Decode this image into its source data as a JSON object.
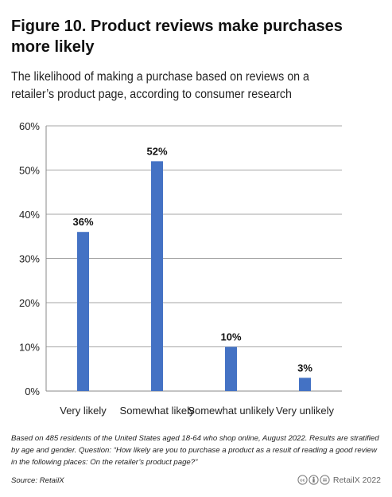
{
  "title": "Figure 10. Product reviews make purchases more likely",
  "subtitle": "The likelihood of making a purchase based on reviews on a retailer’s product page, according to consumer research",
  "note": "Based on 485 residents of the United States aged 18-64 who shop online, August 2022. Results are stratified by age and gender. Question: “How likely are you to purchase a product as a result of reading a good review in the following places: On the retailer’s product page?”",
  "source": "Source: RetailX",
  "copyright": "RetailX 2022",
  "icons": [
    "cc-icon",
    "by-icon",
    "equals-icon"
  ],
  "bar_color": "#4472c4",
  "chart_data": {
    "type": "bar",
    "categories": [
      "Very likely",
      "Somewhat likely",
      "Somewhat unlikely",
      "Very unlikely"
    ],
    "values": [
      36,
      52,
      10,
      3
    ],
    "data_labels": [
      "36%",
      "52%",
      "10%",
      "3%"
    ],
    "yticks": [
      "0%",
      "10%",
      "20%",
      "30%",
      "40%",
      "50%",
      "60%"
    ],
    "ylim": [
      0,
      60
    ],
    "grid": true,
    "legend": false
  }
}
